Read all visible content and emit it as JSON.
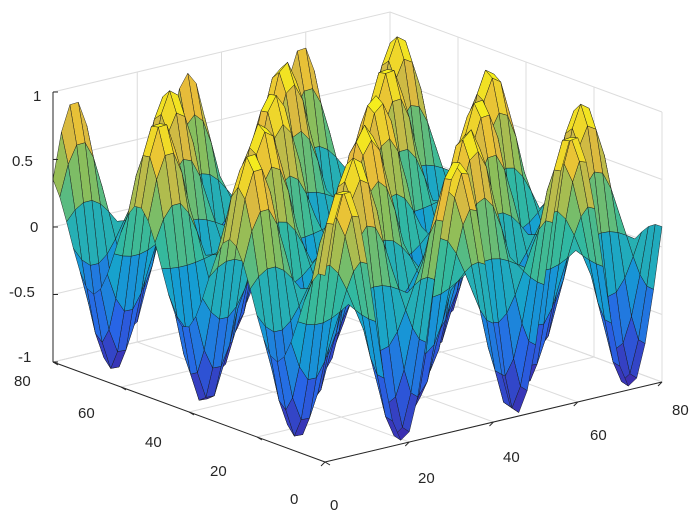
{
  "chart_data": {
    "type": "surface",
    "title": "",
    "xlabel": "",
    "ylabel": "",
    "zlabel": "",
    "function": "z = sin(x/4) * cos(y/4) approximately (periodic ridges)",
    "x_range": [
      0,
      80
    ],
    "y_range": [
      0,
      80
    ],
    "z_range": [
      -1,
      1
    ],
    "x_ticks": [
      "0",
      "20",
      "40",
      "60",
      "80"
    ],
    "y_ticks": [
      "0",
      "20",
      "40",
      "60",
      "80"
    ],
    "z_ticks": [
      "-1",
      "-0.5",
      "0",
      "0.5",
      "1"
    ],
    "colormap": "parula",
    "colors": {
      "low": "#3e26a8",
      "mid_low": "#1e9bd3",
      "mid": "#35b79a",
      "mid_high": "#bfbc3e",
      "high": "#f9fb14"
    },
    "grid": true,
    "box": true
  }
}
